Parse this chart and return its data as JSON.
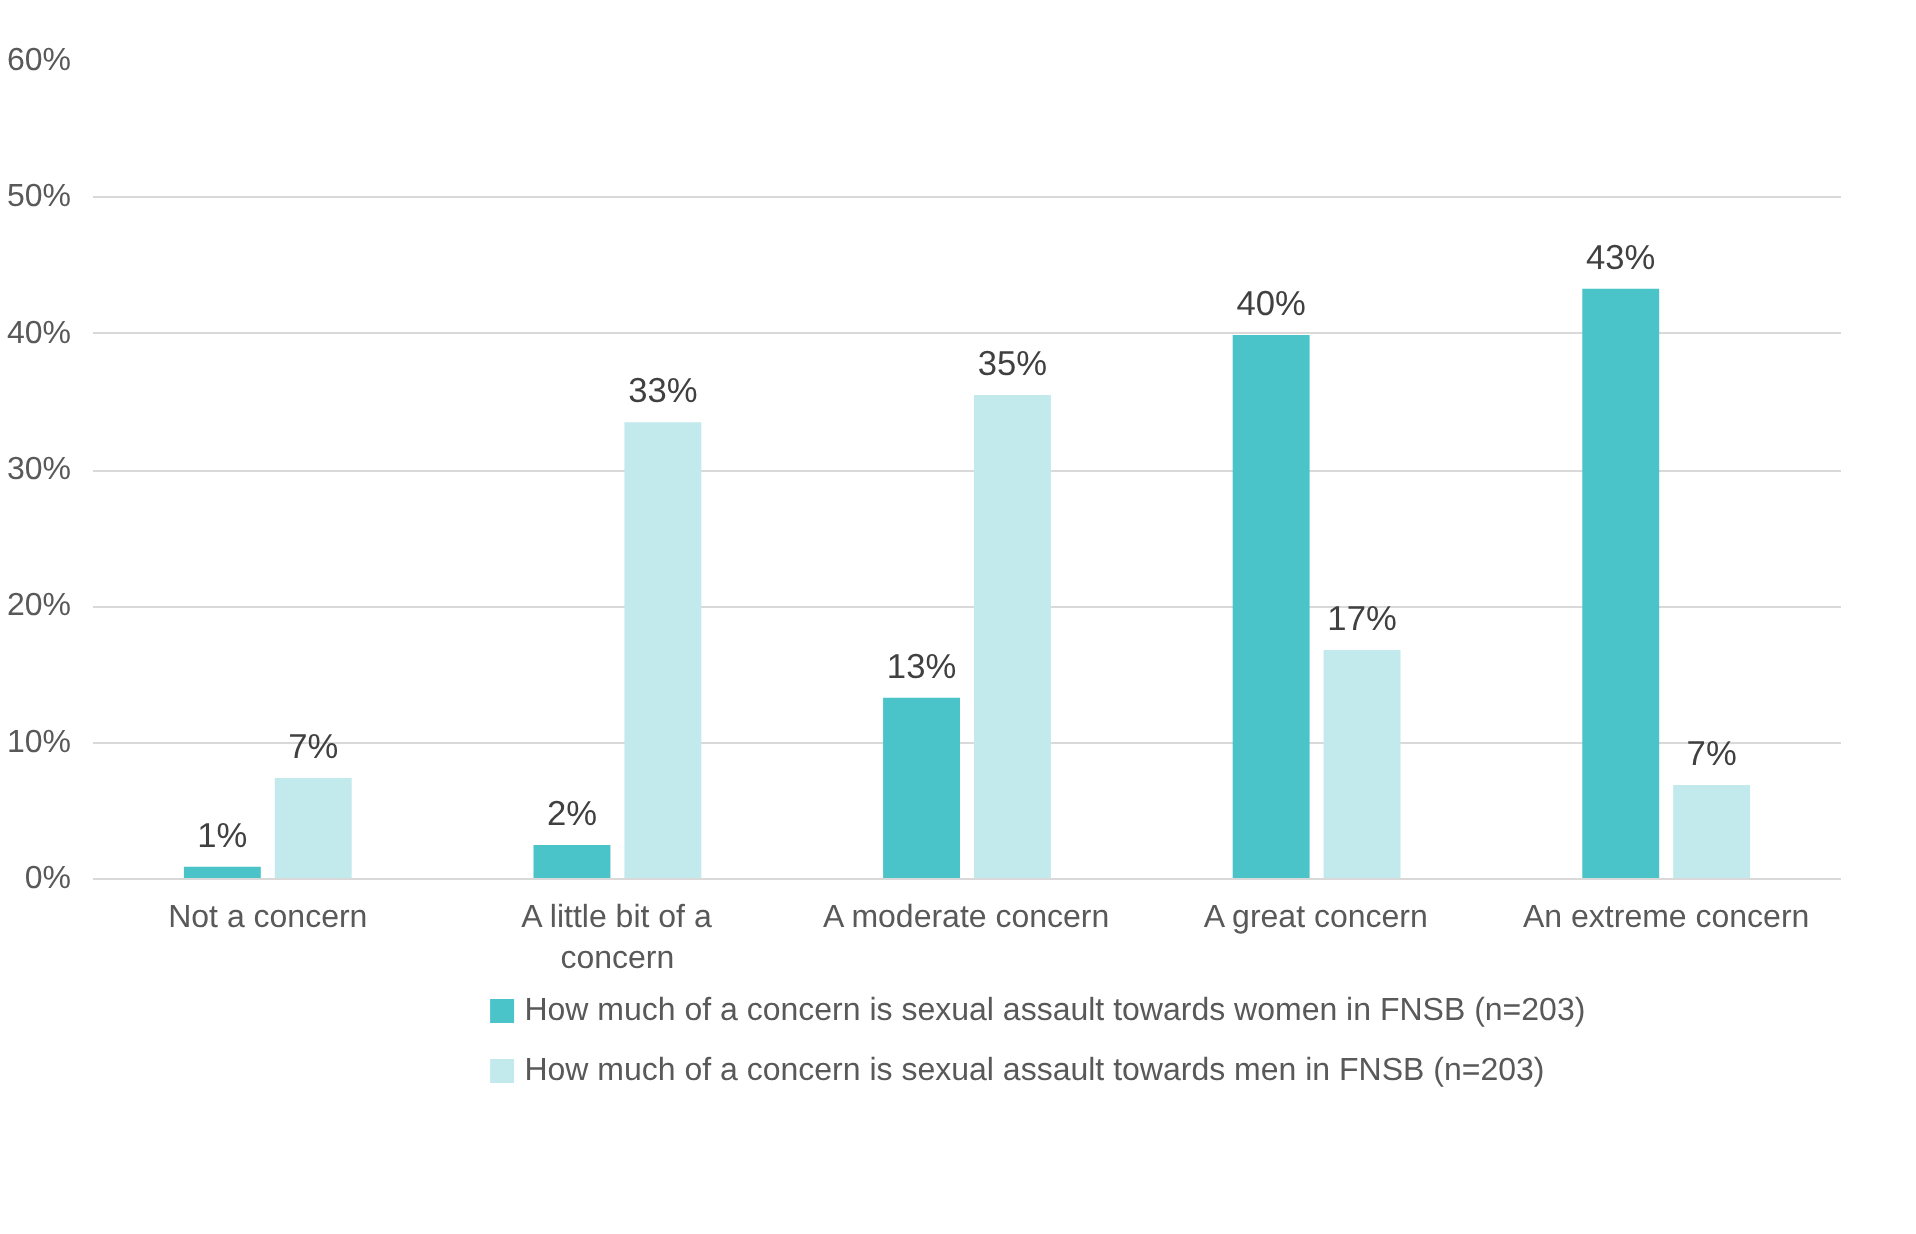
{
  "chart_data": {
    "type": "bar",
    "categories": [
      "Not a concern",
      "A little bit of a concern",
      "A moderate concern",
      "A great concern",
      "An extreme concern"
    ],
    "series": [
      {
        "name": "How much of a concern is sexual assault towards women in FNSB (n=203)",
        "color": "#4ac3c9",
        "values": [
          0.9,
          2.5,
          13.3,
          39.9,
          43.3
        ],
        "value_labels": [
          "1%",
          "2%",
          "13%",
          "40%",
          "43%"
        ]
      },
      {
        "name": "How much of a concern is sexual assault towards men in FNSB (n=203)",
        "color": "#c2eaec",
        "values": [
          7.4,
          33.5,
          35.5,
          16.8,
          6.9
        ],
        "value_labels": [
          "7%",
          "33%",
          "35%",
          "17%",
          "7%"
        ]
      }
    ],
    "ylim": [
      0,
      60
    ],
    "yticks": [
      {
        "value": 0,
        "label": "0%"
      },
      {
        "value": 10,
        "label": "10%"
      },
      {
        "value": 20,
        "label": "20%"
      },
      {
        "value": 30,
        "label": "30%"
      },
      {
        "value": 40,
        "label": "40%"
      },
      {
        "value": 50,
        "label": "50%"
      },
      {
        "value": 60,
        "label": "60%"
      }
    ],
    "grid": "y",
    "legend": "bottom"
  }
}
